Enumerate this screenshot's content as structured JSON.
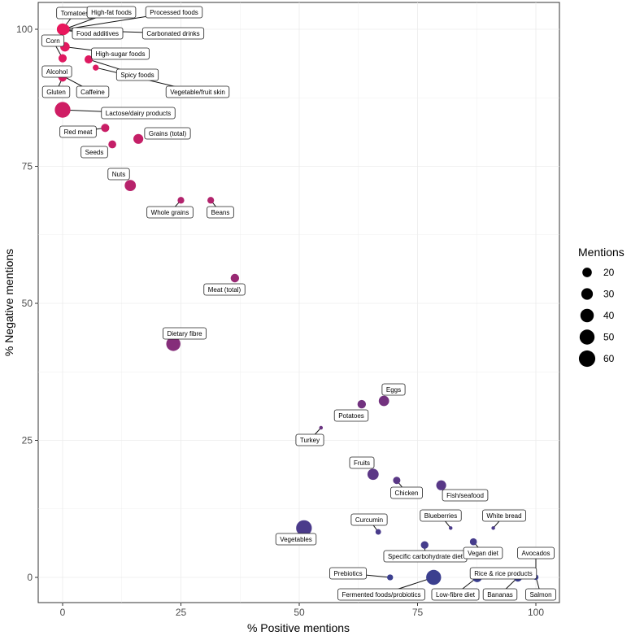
{
  "chart_data": {
    "type": "scatter",
    "xlabel": "% Positive mentions",
    "ylabel": "% Negative mentions",
    "xlim": [
      -5,
      105
    ],
    "ylim": [
      -5,
      105
    ],
    "xticks": [
      0,
      25,
      50,
      75,
      100
    ],
    "yticks": [
      0,
      25,
      50,
      75,
      100
    ],
    "grid": true,
    "size_legend": {
      "title": "Mentions",
      "values": [
        20,
        30,
        40,
        50,
        60
      ],
      "placement": "right"
    },
    "colors": {
      "high_negative": "#E8175D",
      "low_negative": "#3B3F8F"
    },
    "points": [
      {
        "label": "Tomatoes",
        "x": 0,
        "y": 100,
        "size": 30
      },
      {
        "label": "High-fat foods",
        "x": 0.3,
        "y": 100,
        "size": 25
      },
      {
        "label": "Processed foods",
        "x": 0.5,
        "y": 100,
        "size": 20
      },
      {
        "label": "Food additives",
        "x": 0.2,
        "y": 99.8,
        "size": 20
      },
      {
        "label": "Carbonated drinks",
        "x": 0.1,
        "y": 99.9,
        "size": 15
      },
      {
        "label": "Corn",
        "x": 0,
        "y": 94.7,
        "size": 15
      },
      {
        "label": "High-sugar foods",
        "x": 0.5,
        "y": 96.8,
        "size": 20
      },
      {
        "label": "Spicy foods",
        "x": 5.5,
        "y": 94.5,
        "size": 15
      },
      {
        "label": "Vegetable/fruit skin",
        "x": 7,
        "y": 93,
        "size": 8
      },
      {
        "label": "Alcohol",
        "x": 0,
        "y": 91.5,
        "size": 20
      },
      {
        "label": "Gluten",
        "x": 0,
        "y": 91.2,
        "size": 15
      },
      {
        "label": "Caffeine",
        "x": 0.2,
        "y": 91.4,
        "size": 12
      },
      {
        "label": "Lactose/dairy products",
        "x": 0,
        "y": 85.3,
        "size": 55
      },
      {
        "label": "Red meat",
        "x": 9,
        "y": 82,
        "size": 15
      },
      {
        "label": "Seeds",
        "x": 10.5,
        "y": 79,
        "size": 14
      },
      {
        "label": "Grains (total)",
        "x": 16,
        "y": 80,
        "size": 22
      },
      {
        "label": "Nuts",
        "x": 14.3,
        "y": 71.5,
        "size": 28
      },
      {
        "label": "Whole grains",
        "x": 25,
        "y": 68.8,
        "size": 10
      },
      {
        "label": "Beans",
        "x": 31.3,
        "y": 68.8,
        "size": 10
      },
      {
        "label": "Meat (total)",
        "x": 36.4,
        "y": 54.6,
        "size": 16
      },
      {
        "label": "Dietary fibre",
        "x": 23.4,
        "y": 42.6,
        "size": 45
      },
      {
        "label": "Eggs",
        "x": 67.9,
        "y": 32.2,
        "size": 24
      },
      {
        "label": "Potatoes",
        "x": 63.2,
        "y": 31.6,
        "size": 16
      },
      {
        "label": "Turkey",
        "x": 54.6,
        "y": 27.3,
        "size": 3
      },
      {
        "label": "Fruits",
        "x": 65.6,
        "y": 18.8,
        "size": 28
      },
      {
        "label": "Chicken",
        "x": 70.6,
        "y": 17.7,
        "size": 12
      },
      {
        "label": "Fish/seafood",
        "x": 80,
        "y": 16.8,
        "size": 22
      },
      {
        "label": "Curcumin",
        "x": 66.7,
        "y": 8.3,
        "size": 7
      },
      {
        "label": "Blueberries",
        "x": 82,
        "y": 9,
        "size": 3
      },
      {
        "label": "White bread",
        "x": 91,
        "y": 9,
        "size": 3
      },
      {
        "label": "Vegetables",
        "x": 51,
        "y": 9,
        "size": 55
      },
      {
        "label": "Specific carbohydrate diet",
        "x": 76.5,
        "y": 5.9,
        "size": 13
      },
      {
        "label": "Vegan diet",
        "x": 86.8,
        "y": 6.5,
        "size": 11
      },
      {
        "label": "Prebiotics",
        "x": 69.2,
        "y": 0,
        "size": 8
      },
      {
        "label": "Fermented foods/probiotics",
        "x": 78.4,
        "y": 0,
        "size": 50
      },
      {
        "label": "Low-fibre diet",
        "x": 87.6,
        "y": 0,
        "size": 20
      },
      {
        "label": "Rice & rice products",
        "x": 87.8,
        "y": 0.2,
        "size": 12
      },
      {
        "label": "Bananas",
        "x": 96.2,
        "y": 0,
        "size": 16
      },
      {
        "label": "Avocados",
        "x": 100,
        "y": 0,
        "size": 6
      },
      {
        "label": "Salmon",
        "x": 100,
        "y": 0.1,
        "size": 5
      }
    ]
  }
}
